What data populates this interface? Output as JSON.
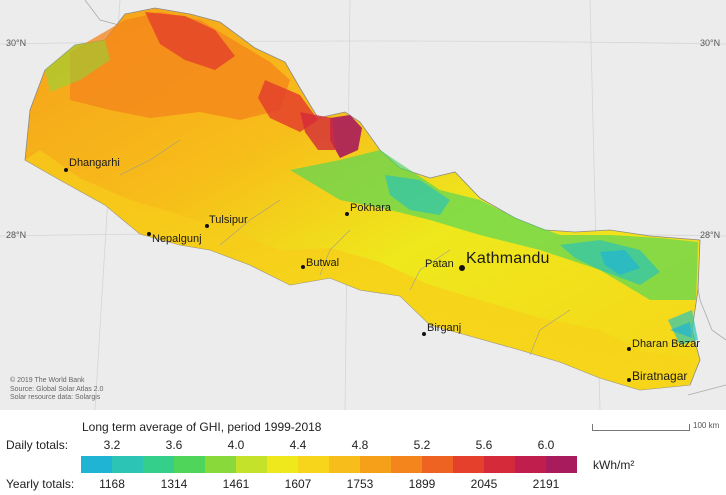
{
  "map": {
    "grid_labels": {
      "lat30_left": "30°N",
      "lat30_right": "30°N",
      "lat28_left": "28°N",
      "lat28_right": "28°N"
    },
    "cities": {
      "dhangarhi": "Dhangarhi",
      "tulsipur": "Tulsipur",
      "nepalgunj": "Nepalgunj",
      "pokhara": "Pokhara",
      "butwal": "Butwal",
      "patan": "Patan",
      "kathmandu": "Kathmandu",
      "birganj": "Birganj",
      "dharan_bazar": "Dharan Bazar",
      "biratnagar": "Biratnagar"
    },
    "attribution": {
      "line1": "© 2019 The World Bank",
      "line2": "Source: Global Solar Atlas 2.0",
      "line3": "Solar resource data: Solargis"
    },
    "scale_label": "100 km"
  },
  "legend": {
    "title": "Long term average of GHI, period 1999-2018",
    "daily_label": "Daily totals:",
    "daily_ticks": [
      "3.2",
      "3.6",
      "4.0",
      "4.4",
      "4.8",
      "5.2",
      "5.6",
      "6.0"
    ],
    "yearly_label": "Yearly totals:",
    "yearly_ticks": [
      "1168",
      "1314",
      "1461",
      "1607",
      "1753",
      "1899",
      "2045",
      "2191"
    ],
    "unit": "kWh/m²",
    "colors": [
      "#1fb3d4",
      "#2cc4b4",
      "#34cf8a",
      "#4fd65a",
      "#8ad93a",
      "#c4e22a",
      "#eee81c",
      "#f7d51a",
      "#f7bd1a",
      "#f6a01a",
      "#f4841c",
      "#ef6322",
      "#e4402b",
      "#d52a3a",
      "#c01f4d",
      "#a81b5c"
    ]
  }
}
